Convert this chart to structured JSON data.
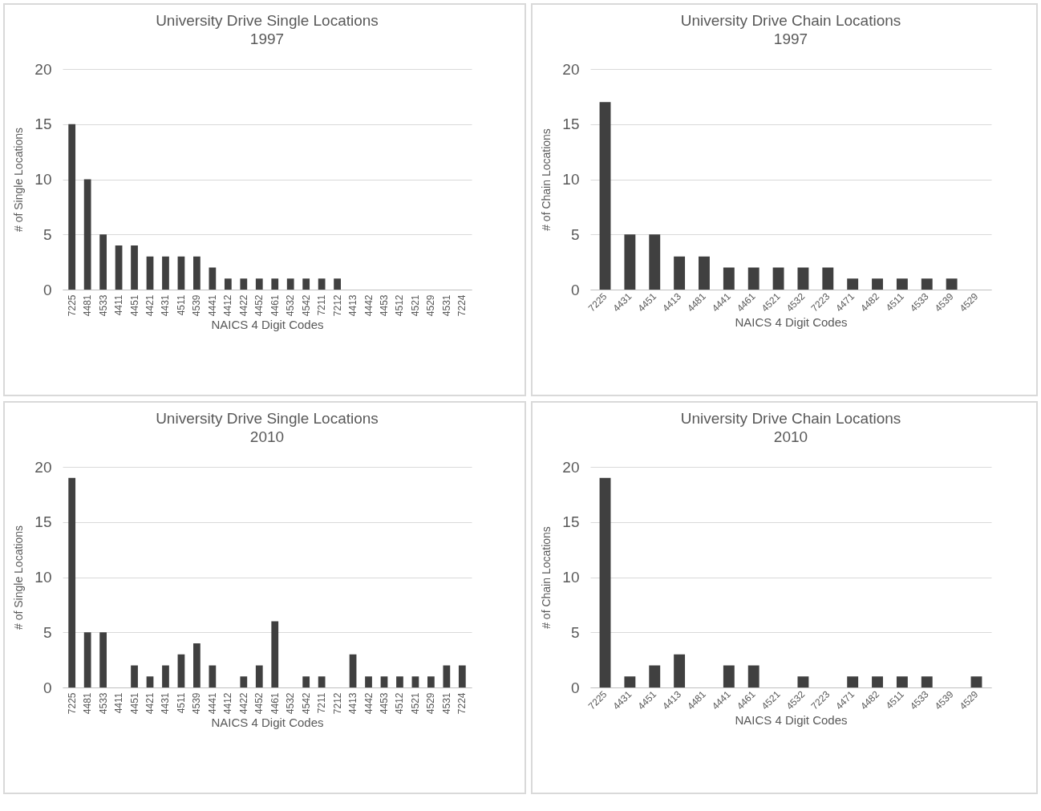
{
  "chart_data": [
    {
      "type": "bar",
      "title": "University Drive Single Locations",
      "subtitle": "1997",
      "xlabel": "NAICS 4 Digit Codes",
      "ylabel": "# of Single Locations",
      "categories": [
        "7225",
        "4481",
        "4533",
        "4411",
        "4451",
        "4421",
        "4431",
        "4511",
        "4539",
        "4441",
        "4412",
        "4422",
        "4452",
        "4461",
        "4532",
        "4542",
        "7211",
        "7212",
        "4413",
        "4442",
        "4453",
        "4512",
        "4521",
        "4529",
        "4531",
        "7224"
      ],
      "values": [
        15,
        10,
        5,
        4,
        4,
        3,
        3,
        3,
        3,
        2,
        1,
        1,
        1,
        1,
        1,
        1,
        1,
        1,
        0,
        0,
        0,
        0,
        0,
        0,
        0,
        0
      ],
      "color": "#404040",
      "ylim": [
        0,
        20
      ],
      "yticks": [
        0,
        5,
        10,
        15,
        20
      ],
      "grid": "y"
    },
    {
      "type": "bar",
      "title": "University Drive Chain Locations",
      "subtitle": "1997",
      "xlabel": "NAICS 4 Digit Codes",
      "ylabel": "# of Chain Locations",
      "categories": [
        "7225",
        "4431",
        "4451",
        "4413",
        "4481",
        "4441",
        "4461",
        "4521",
        "4532",
        "7223",
        "4471",
        "4482",
        "4511",
        "4533",
        "4539",
        "4529"
      ],
      "values": [
        17,
        5,
        5,
        3,
        3,
        2,
        2,
        2,
        2,
        2,
        1,
        1,
        1,
        1,
        1,
        0
      ],
      "color": "#404040",
      "ylim": [
        0,
        20
      ],
      "yticks": [
        0,
        5,
        10,
        15,
        20
      ],
      "grid": "y"
    },
    {
      "type": "bar",
      "title": "University Drive Single Locations",
      "subtitle": "2010",
      "xlabel": "NAICS 4 Digit Codes",
      "ylabel": "# of Single Locations",
      "categories": [
        "7225",
        "4481",
        "4533",
        "4411",
        "4451",
        "4421",
        "4431",
        "4511",
        "4539",
        "4441",
        "4412",
        "4422",
        "4452",
        "4461",
        "4532",
        "4542",
        "7211",
        "7212",
        "4413",
        "4442",
        "4453",
        "4512",
        "4521",
        "4529",
        "4531",
        "7224"
      ],
      "values": [
        19,
        5,
        5,
        0,
        2,
        1,
        2,
        3,
        4,
        2,
        0,
        1,
        2,
        6,
        0,
        1,
        1,
        0,
        3,
        1,
        1,
        1,
        1,
        1,
        2,
        2
      ],
      "color": "#404040",
      "ylim": [
        0,
        20
      ],
      "yticks": [
        0,
        5,
        10,
        15,
        20
      ],
      "grid": "y"
    },
    {
      "type": "bar",
      "title": "University Drive Chain Locations",
      "subtitle": "2010",
      "xlabel": "NAICS 4 Digit Codes",
      "ylabel": "# of Chain Locations",
      "categories": [
        "7225",
        "4431",
        "4451",
        "4413",
        "4481",
        "4441",
        "4461",
        "4521",
        "4532",
        "7223",
        "4471",
        "4482",
        "4511",
        "4533",
        "4539",
        "4529"
      ],
      "values": [
        19,
        1,
        2,
        3,
        0,
        2,
        2,
        0,
        1,
        0,
        1,
        1,
        1,
        1,
        0,
        1
      ],
      "color": "#404040",
      "ylim": [
        0,
        20
      ],
      "yticks": [
        0,
        5,
        10,
        15,
        20
      ],
      "grid": "y"
    }
  ]
}
